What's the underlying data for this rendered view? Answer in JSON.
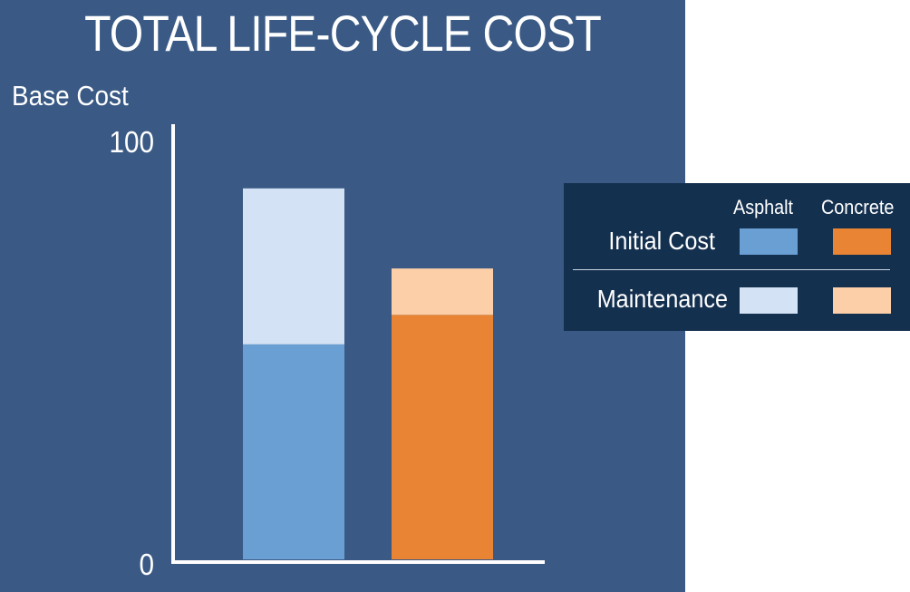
{
  "chart_data": {
    "type": "bar",
    "stacked": true,
    "title": "TOTAL LIFE-CYCLE COST",
    "ylabel": "Base Cost",
    "xlabel": "",
    "ylim": [
      0,
      100
    ],
    "y_ticks": [
      "100",
      "0"
    ],
    "categories": [
      "Asphalt",
      "Concrete"
    ],
    "series": [
      {
        "name": "Initial Cost",
        "values": [
          51,
          58
        ]
      },
      {
        "name": "Maintenance",
        "values": [
          37,
          11
        ]
      }
    ],
    "colors": {
      "Asphalt": {
        "Initial Cost": "#6a9fd4",
        "Maintenance": "#d3e2f4"
      },
      "Concrete": {
        "Initial Cost": "#e88434",
        "Maintenance": "#fccfa8"
      }
    },
    "grid": false,
    "legend": {
      "placement": "right",
      "column_headers": [
        "Asphalt",
        "Concrete"
      ],
      "row_labels": [
        "Initial Cost",
        "Maintenance"
      ]
    },
    "background": "#3a5a85",
    "legend_background": "#14304f"
  }
}
